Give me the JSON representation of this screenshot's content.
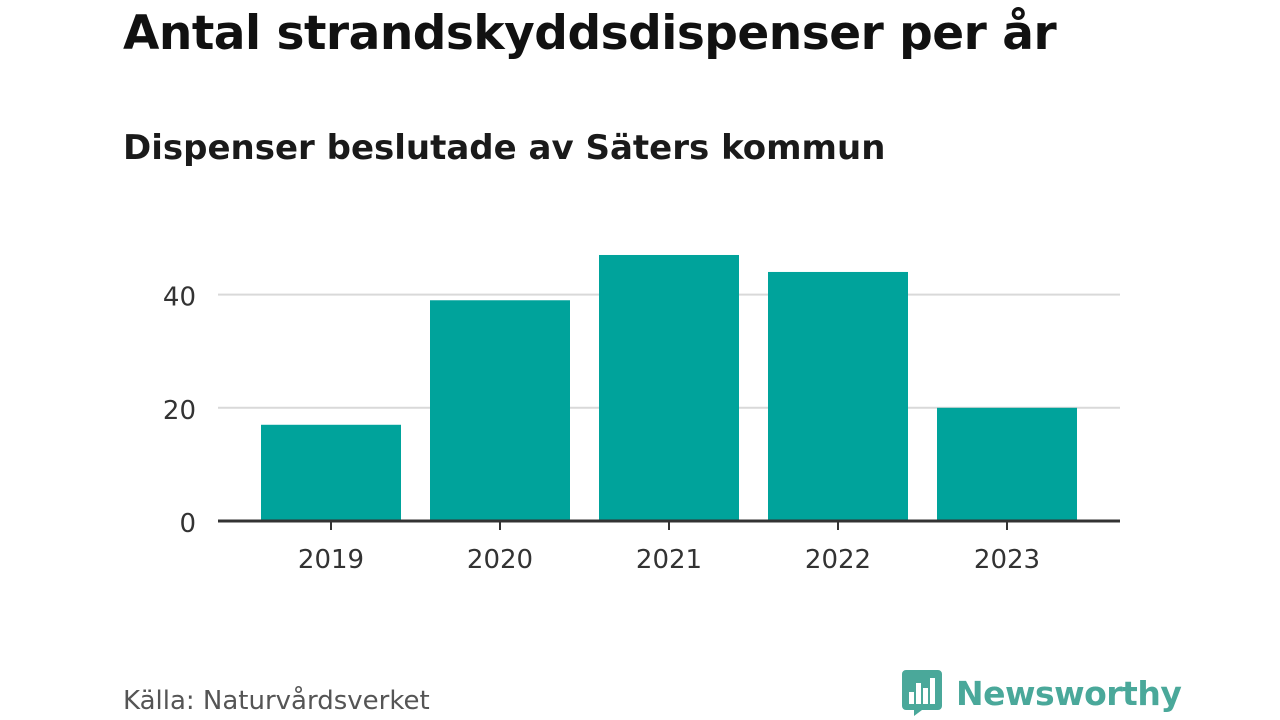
{
  "title": "Antal strandskyddsdispenser per år",
  "subtitle": "Dispenser beslutade av Säters kommun",
  "source": "Källa: Naturvårdsverket",
  "brand": {
    "name": "Newsworthy",
    "logo_icon": "bar-chart-speech-bubble-icon",
    "color": "#4aa89a"
  },
  "colors": {
    "bar": "#00a39b",
    "grid": "#d9d9d9",
    "axis": "#333333",
    "text": "#333333"
  },
  "chart_data": {
    "type": "bar",
    "categories": [
      "2019",
      "2020",
      "2021",
      "2022",
      "2023"
    ],
    "values": [
      17,
      39,
      47,
      44,
      20
    ],
    "xlabel": "",
    "ylabel": "",
    "ylim": [
      0,
      50
    ],
    "yticks": [
      0,
      20,
      40
    ],
    "grid": true,
    "legend": "none"
  }
}
